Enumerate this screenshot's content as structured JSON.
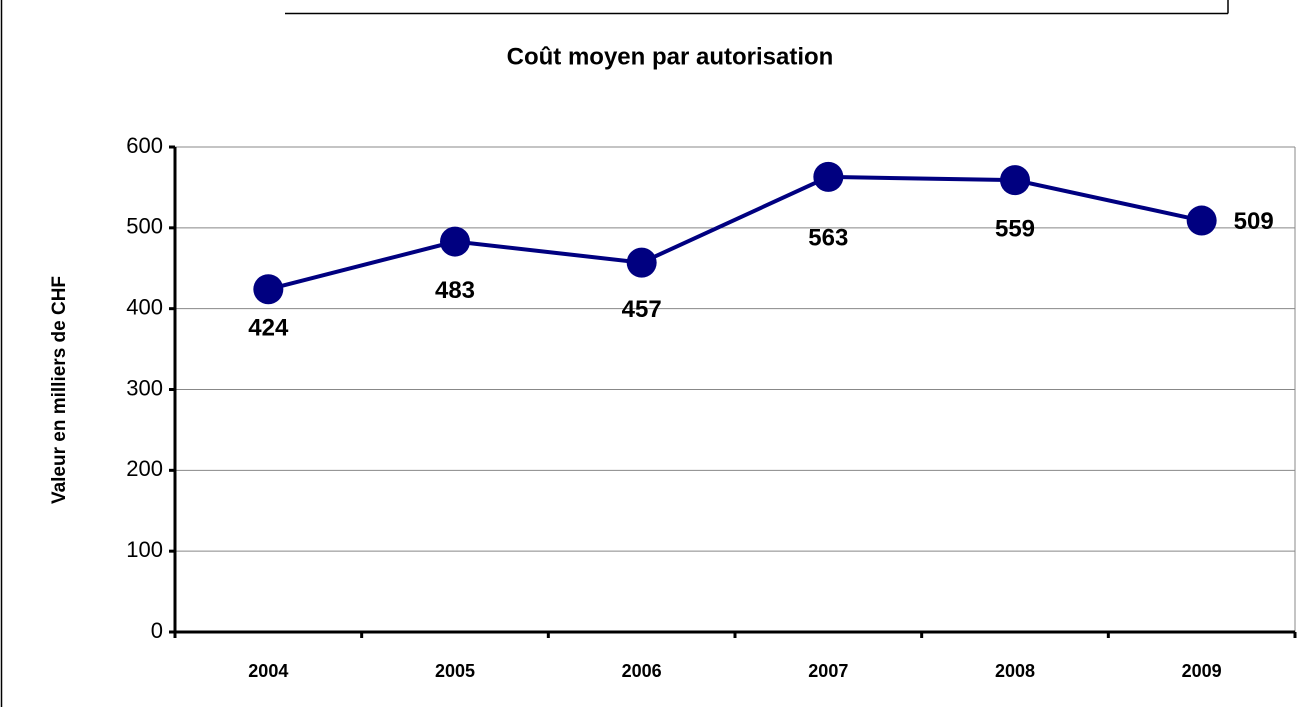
{
  "chart_data": {
    "type": "line",
    "title": "Coût moyen par autorisation",
    "y_label": "Valeur en milliers de CHF",
    "categories": [
      "2004",
      "2005",
      "2006",
      "2007",
      "2008",
      "2009"
    ],
    "values": [
      424,
      483,
      457,
      563,
      559,
      509
    ],
    "color": "#000080",
    "ylim": [
      0,
      600
    ],
    "yticks": [
      0,
      100,
      200,
      300,
      400,
      500,
      600
    ],
    "grid": true
  }
}
